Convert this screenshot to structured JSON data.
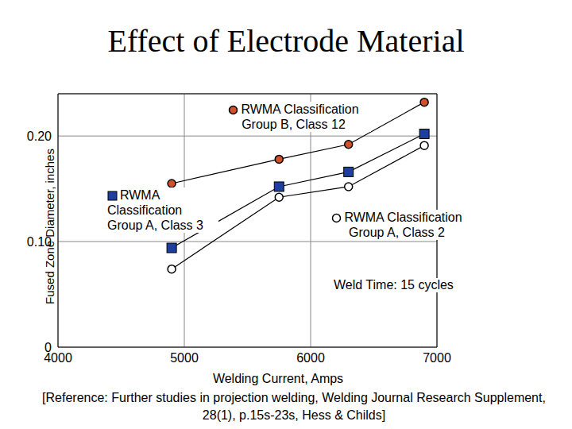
{
  "chart_data": {
    "type": "line",
    "title": "Effect of Electrode Material",
    "x_label": "Welding Current, Amps",
    "y_label": "Fused Zone Diameter, inches",
    "x": [
      4900,
      5750,
      6300,
      6900
    ],
    "series": [
      {
        "name": "RWMA Classification Group B, Class 12",
        "color": "#d2502a",
        "marker": "circle",
        "values": [
          0.155,
          0.178,
          0.192,
          0.232
        ]
      },
      {
        "name": "RWMA Classification Group A, Class 3",
        "color": "#1f3fa0",
        "marker": "square",
        "values": [
          0.094,
          0.152,
          0.166,
          0.202
        ]
      },
      {
        "name": "RWMA Classification Group A, Class 2",
        "color": "#ffffff",
        "marker": "circle",
        "values": [
          0.074,
          0.142,
          0.152,
          0.191
        ]
      }
    ],
    "xlim": [
      4000,
      7000
    ],
    "xticks": [
      4000,
      5000,
      6000,
      7000
    ],
    "ylim": [
      0,
      0.24
    ],
    "yticks": [
      0,
      {
        "value": 0.1,
        "label": "0.10"
      },
      {
        "value": 0.2,
        "label": "0.20"
      }
    ],
    "grid": true,
    "annotations": [
      "Weld Time: 15 cycles"
    ],
    "source": "[Reference: Further studies in projection welding, Welding Journal Research Supplement, 28(1), p.15s-23s, Hess & Childs]"
  }
}
